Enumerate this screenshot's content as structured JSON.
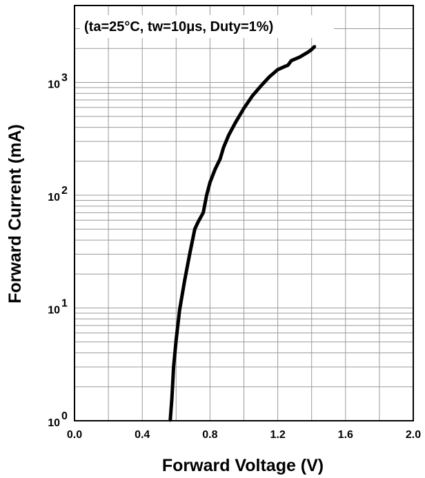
{
  "chart_data": {
    "type": "line",
    "xlabel": "Forward Voltage (V)",
    "ylabel": "Forward Current (mA)",
    "annotation": "(ta=25°C, tw=10μs, Duty=1%)",
    "x_scale": "linear",
    "y_scale": "log",
    "xlim": [
      0.0,
      2.0
    ],
    "ylim": [
      1,
      3000
    ],
    "grid": true,
    "x_ticks": [
      {
        "value": 0.0,
        "label": "0.0"
      },
      {
        "value": 0.2,
        "label": ""
      },
      {
        "value": 0.4,
        "label": "0.4"
      },
      {
        "value": 0.6,
        "label": ""
      },
      {
        "value": 0.8,
        "label": "0.8"
      },
      {
        "value": 1.0,
        "label": ""
      },
      {
        "value": 1.2,
        "label": "1.2"
      },
      {
        "value": 1.4,
        "label": ""
      },
      {
        "value": 1.6,
        "label": "1.6"
      },
      {
        "value": 1.8,
        "label": ""
      },
      {
        "value": 2.0,
        "label": "2.0"
      }
    ],
    "y_ticks": [
      {
        "value": 1,
        "base": "10",
        "exp": "0"
      },
      {
        "value": 10,
        "base": "10",
        "exp": "1"
      },
      {
        "value": 100,
        "base": "10",
        "exp": "2"
      },
      {
        "value": 1000,
        "base": "10",
        "exp": "3"
      }
    ],
    "series": [
      {
        "color": "#000000",
        "x": [
          0.565,
          0.575,
          0.585,
          0.6,
          0.62,
          0.65,
          0.68,
          0.71,
          0.73,
          0.76,
          0.78,
          0.8,
          0.83,
          0.86,
          0.88,
          0.91,
          0.95,
          1.0,
          1.05,
          1.1,
          1.15,
          1.2,
          1.24,
          1.26,
          1.28,
          1.33,
          1.38,
          1.4,
          1.42
        ],
        "y": [
          1.0,
          1.6,
          3.0,
          5.2,
          9.5,
          17.5,
          30,
          50,
          58,
          70,
          100,
          130,
          170,
          210,
          265,
          340,
          440,
          590,
          760,
          930,
          1120,
          1300,
          1380,
          1420,
          1560,
          1680,
          1860,
          1960,
          2100
        ]
      }
    ]
  }
}
